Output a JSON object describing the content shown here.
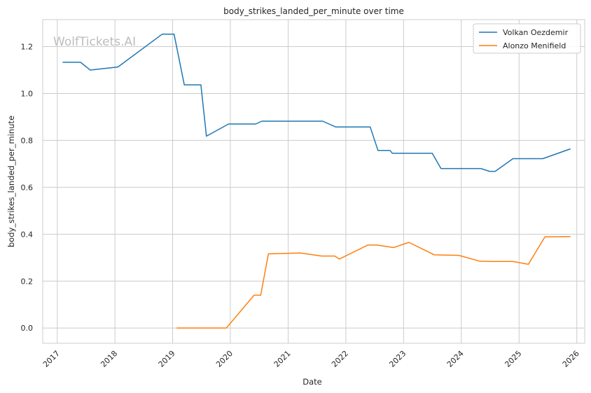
{
  "watermark": "WolfTickets.AI",
  "chart_data": {
    "type": "line",
    "title": "body_strikes_landed_per_minute over time",
    "xlabel": "Date",
    "ylabel": "body_strikes_landed_per_minute",
    "xlim": [
      "2016-10-01",
      "2026-02-20"
    ],
    "ylim": [
      -0.065,
      1.315
    ],
    "x_ticks": [
      "2017",
      "2018",
      "2019",
      "2020",
      "2021",
      "2022",
      "2023",
      "2024",
      "2025",
      "2026"
    ],
    "y_ticks": [
      "0.0",
      "0.2",
      "0.4",
      "0.6",
      "0.8",
      "1.0",
      "1.2"
    ],
    "grid": true,
    "legend": "top-right",
    "series": [
      {
        "name": "Volkan Oezdemir",
        "color": "#1f77b4",
        "points": [
          [
            "2017-02-04",
            1.133
          ],
          [
            "2017-05-28",
            1.133
          ],
          [
            "2017-07-29",
            1.1
          ],
          [
            "2018-01-20",
            1.113
          ],
          [
            "2018-10-27",
            1.253
          ],
          [
            "2019-01-10",
            1.253
          ],
          [
            "2019-03-16",
            1.037
          ],
          [
            "2019-06-29",
            1.037
          ],
          [
            "2019-08-03",
            0.818
          ],
          [
            "2019-12-21",
            0.87
          ],
          [
            "2020-06-10",
            0.87
          ],
          [
            "2020-07-18",
            0.882
          ],
          [
            "2021-08-07",
            0.882
          ],
          [
            "2021-10-30",
            0.857
          ],
          [
            "2022-06-04",
            0.857
          ],
          [
            "2022-07-23",
            0.757
          ],
          [
            "2022-10-08",
            0.757
          ],
          [
            "2022-10-22",
            0.745
          ],
          [
            "2023-07-01",
            0.745
          ],
          [
            "2023-08-26",
            0.68
          ],
          [
            "2024-05-04",
            0.68
          ],
          [
            "2024-06-29",
            0.668
          ],
          [
            "2024-08-03",
            0.668
          ],
          [
            "2024-11-23",
            0.722
          ],
          [
            "2025-05-31",
            0.722
          ],
          [
            "2025-11-22",
            0.764
          ]
        ]
      },
      {
        "name": "Alonzo Menifield",
        "color": "#ff7f0e",
        "points": [
          [
            "2019-01-26",
            0.0
          ],
          [
            "2019-12-07",
            0.0
          ],
          [
            "2020-05-30",
            0.14
          ],
          [
            "2020-07-11",
            0.14
          ],
          [
            "2020-08-29",
            0.316
          ],
          [
            "2021-03-20",
            0.32
          ],
          [
            "2021-07-31",
            0.307
          ],
          [
            "2021-10-23",
            0.307
          ],
          [
            "2021-11-20",
            0.294
          ],
          [
            "2022-05-21",
            0.354
          ],
          [
            "2022-07-16",
            0.354
          ],
          [
            "2022-10-29",
            0.343
          ],
          [
            "2023-02-04",
            0.365
          ],
          [
            "2023-07-15",
            0.312
          ],
          [
            "2023-12-16",
            0.31
          ],
          [
            "2024-04-27",
            0.285
          ],
          [
            "2024-07-13",
            0.284
          ],
          [
            "2024-11-23",
            0.284
          ],
          [
            "2025-03-01",
            0.272
          ],
          [
            "2025-06-14",
            0.389
          ],
          [
            "2025-11-22",
            0.39
          ]
        ]
      }
    ]
  }
}
